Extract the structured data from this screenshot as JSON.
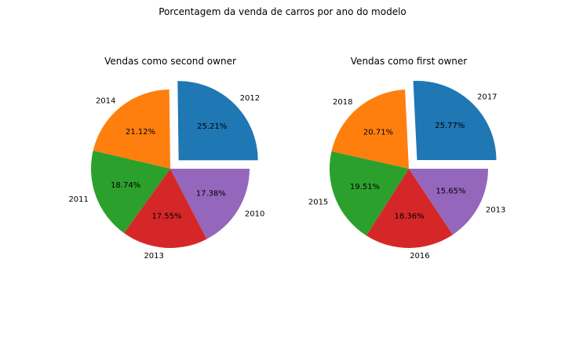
{
  "figure": {
    "suptitle": "Porcentagem da venda de carros por ano do modelo"
  },
  "chart_data": [
    {
      "type": "pie",
      "title": "Vendas como second owner",
      "categories": [
        "2012",
        "2014",
        "2011",
        "2013",
        "2010"
      ],
      "values": [
        25.21,
        21.12,
        18.74,
        17.55,
        17.38
      ],
      "value_labels": [
        "25.21%",
        "21.12%",
        "18.74%",
        "17.55%",
        "17.38%"
      ],
      "colors": [
        "#1f77b4",
        "#ff7f0e",
        "#2ca02c",
        "#d62728",
        "#9467bd"
      ],
      "explode": [
        0.15,
        0,
        0,
        0,
        0
      ],
      "start_angle_deg": 0,
      "direction": "counterclockwise"
    },
    {
      "type": "pie",
      "title": "Vendas como first owner",
      "categories": [
        "2017",
        "2018",
        "2015",
        "2016",
        "2013"
      ],
      "values": [
        25.77,
        20.71,
        19.51,
        18.36,
        15.65
      ],
      "value_labels": [
        "25.77%",
        "20.71%",
        "19.51%",
        "18.36%",
        "15.65%"
      ],
      "colors": [
        "#1f77b4",
        "#ff7f0e",
        "#2ca02c",
        "#d62728",
        "#9467bd"
      ],
      "explode": [
        0.15,
        0,
        0,
        0,
        0
      ],
      "start_angle_deg": 0,
      "direction": "counterclockwise"
    }
  ]
}
